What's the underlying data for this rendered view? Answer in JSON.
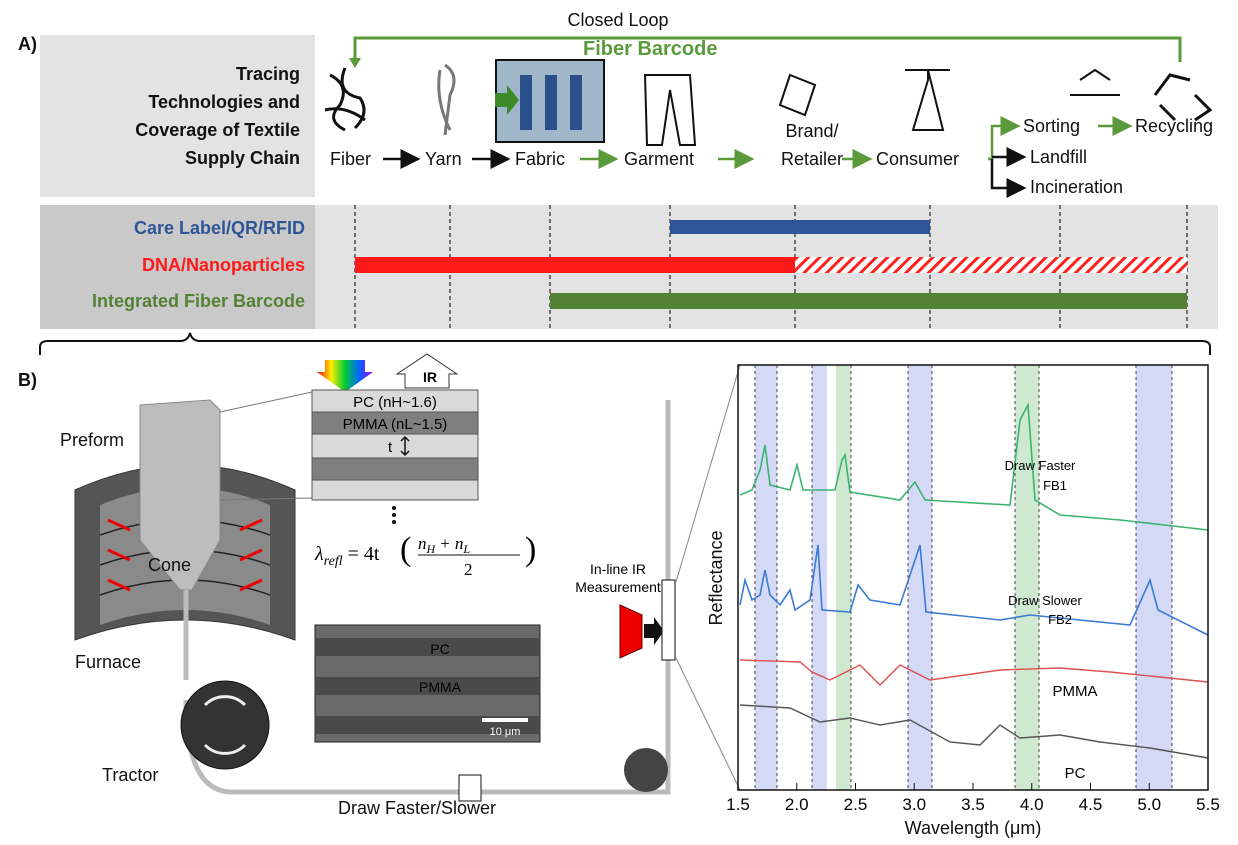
{
  "panel_a": {
    "label": "A)",
    "title_lines": [
      "Tracing",
      "Technologies and",
      "Coverage of Textile",
      "Supply Chain"
    ],
    "closed_loop": "Closed Loop",
    "fiber_barcode": "Fiber Barcode",
    "stages": [
      "Fiber",
      "Yarn",
      "Fabric",
      "Garment",
      "Brand/",
      "Retailer",
      "Consumer",
      "Sorting",
      "Recycling",
      "Landfill",
      "Incineration"
    ],
    "technologies": [
      "Care Label/QR/RFID",
      "DNA/Nanoparticles",
      "Integrated Fiber Barcode"
    ]
  },
  "panel_b": {
    "label": "B)",
    "parts": [
      "Preform",
      "Cone",
      "Furnace",
      "Tractor",
      "Draw Faster/Slower"
    ],
    "ir": "IR",
    "layers": [
      "PC (nH~1.6)",
      "PMMA (nL~1.5)",
      "t"
    ],
    "equation": {
      "lambda": "λ",
      "sub": "refl",
      "coef": "= 4t",
      "n1": "n",
      "h": "H",
      "plus": "+ n",
      "l": "L",
      "den": "2"
    },
    "sem": {
      "top": "PC",
      "middle": "PMMA",
      "scale": "10 μm"
    },
    "inline_ir": [
      "In-line IR",
      "Measurement"
    ],
    "spectrum": {
      "xlabel": "Wavelength (μm)",
      "ylabel": "Reflectance",
      "xlim": [
        1.5,
        5.5
      ],
      "xticks": [
        1.5,
        {
          "value": 2,
          "label": "2.0"
        },
        2.5,
        {
          "value": 3,
          "label": "3.0"
        },
        3.5,
        {
          "value": 4,
          "label": "4.0"
        },
        4.5,
        {
          "value": 5,
          "label": "5.0"
        },
        5.5
      ],
      "curve_labels": [
        "Draw Faster",
        "FB1",
        "Draw Slower",
        "FB2",
        "PMMA",
        "PC"
      ]
    }
  }
}
